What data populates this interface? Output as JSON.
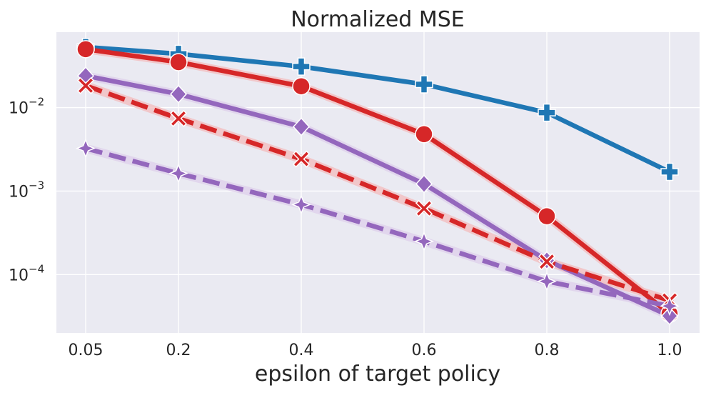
{
  "chart_data": {
    "type": "line",
    "title": "Normalized MSE",
    "xlabel": "epsilon of target policy",
    "ylabel": "",
    "yscale": "log",
    "ylim": [
      2e-05,
      0.08
    ],
    "categories": [
      "0.05",
      "0.2",
      "0.4",
      "0.6",
      "0.8",
      "1.0"
    ],
    "y_ticks": [
      {
        "base": "10",
        "exp": "−2",
        "value": 0.01
      },
      {
        "base": "10",
        "exp": "−3",
        "value": 0.001
      },
      {
        "base": "10",
        "exp": "−4",
        "value": 0.0001
      }
    ],
    "grid": true,
    "legend": "none",
    "series": [
      {
        "color": "#1f77b4",
        "dash": "solid",
        "marker": "plus",
        "band": false,
        "values": [
          0.053,
          0.044,
          0.031,
          0.019,
          0.0087,
          0.0017
        ]
      },
      {
        "color": "#d62728",
        "dash": "solid",
        "marker": "circle",
        "band": true,
        "values": [
          0.05,
          0.035,
          0.018,
          0.0048,
          0.0005,
          3.4e-05
        ]
      },
      {
        "color": "#9467bd",
        "dash": "solid",
        "marker": "diamond",
        "band": true,
        "values": [
          0.024,
          0.0145,
          0.0059,
          0.00122,
          0.000148,
          3.2e-05
        ]
      },
      {
        "color": "#d62728",
        "dash": "dashed",
        "marker": "x",
        "band": true,
        "values": [
          0.0183,
          0.0074,
          0.00242,
          0.00062,
          0.000143,
          4.9e-05
        ]
      },
      {
        "color": "#9467bd",
        "dash": "dashed",
        "marker": "star4",
        "band": true,
        "values": [
          0.00325,
          0.00163,
          0.00069,
          0.00025,
          8.3e-05,
          4.2e-05
        ]
      }
    ]
  }
}
